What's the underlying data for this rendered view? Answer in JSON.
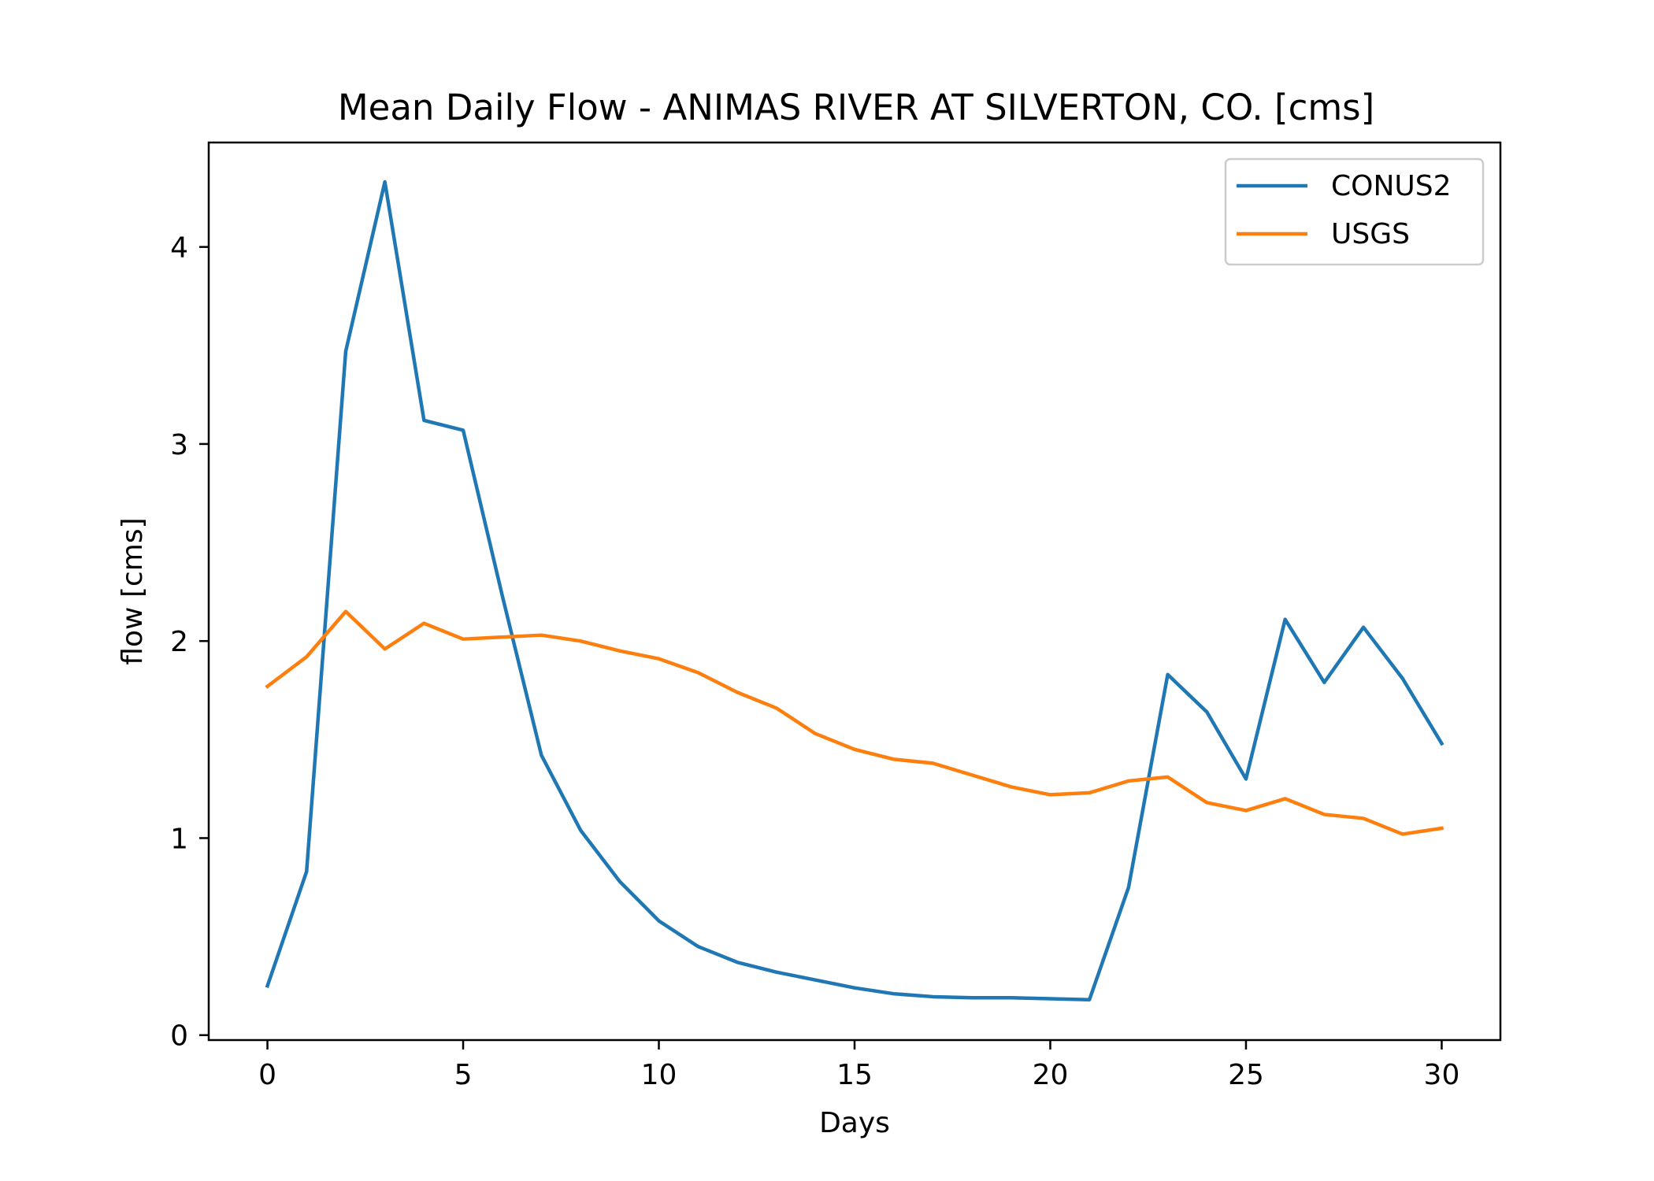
{
  "chart_data": {
    "type": "line",
    "title": "Mean Daily Flow - ANIMAS RIVER AT SILVERTON, CO. [cms]",
    "xlabel": "Days",
    "ylabel": "flow [cms]",
    "xlim": [
      -1.5,
      31.5
    ],
    "ylim": [
      -0.025,
      4.53
    ],
    "xticks": [
      0,
      5,
      10,
      15,
      20,
      25,
      30
    ],
    "yticks": [
      0,
      1,
      2,
      3,
      4
    ],
    "grid": false,
    "legend_position": "top-right",
    "x": [
      0,
      1,
      2,
      3,
      4,
      5,
      6,
      7,
      8,
      9,
      10,
      11,
      12,
      13,
      14,
      15,
      16,
      17,
      18,
      19,
      20,
      21,
      22,
      23,
      24,
      25,
      26,
      27,
      28,
      29,
      30
    ],
    "series": [
      {
        "name": "CONUS2",
        "color": "#1f77b4",
        "values": [
          0.25,
          0.83,
          3.47,
          4.33,
          3.12,
          3.07,
          2.23,
          1.42,
          1.04,
          0.78,
          0.58,
          0.45,
          0.37,
          0.32,
          0.28,
          0.24,
          0.21,
          0.195,
          0.19,
          0.19,
          0.185,
          0.18,
          0.75,
          1.83,
          1.64,
          1.3,
          2.11,
          1.79,
          2.07,
          1.81,
          1.48
        ]
      },
      {
        "name": "USGS",
        "color": "#ff7f0e",
        "values": [
          1.77,
          1.92,
          2.15,
          1.96,
          2.09,
          2.01,
          2.02,
          2.03,
          2.0,
          1.95,
          1.91,
          1.84,
          1.74,
          1.66,
          1.53,
          1.45,
          1.4,
          1.38,
          1.32,
          1.26,
          1.22,
          1.23,
          1.29,
          1.31,
          1.18,
          1.14,
          1.2,
          1.12,
          1.1,
          1.02,
          1.05
        ]
      }
    ]
  }
}
